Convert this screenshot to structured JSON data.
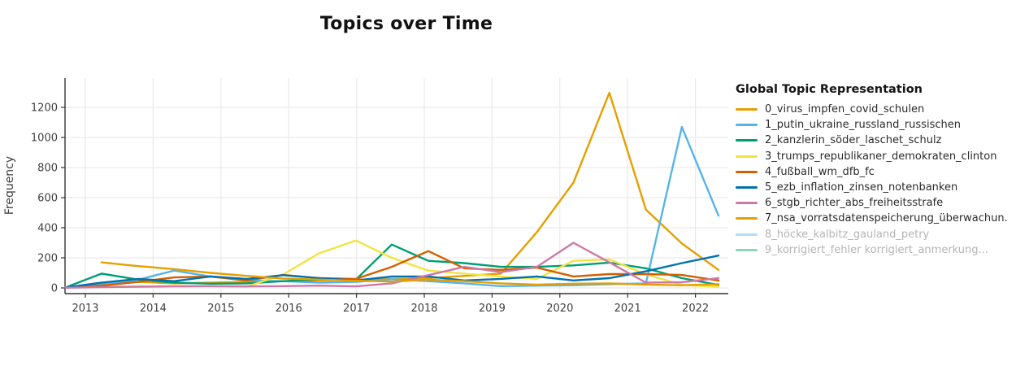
{
  "title": "Topics over Time",
  "legend": {
    "title": "Global Topic Representation"
  },
  "chart_data": {
    "type": "line",
    "title": "Topics over Time",
    "xlabel": "",
    "ylabel": "Frequency",
    "grid": true,
    "legend_position": "right",
    "legend_title": "Global Topic Representation",
    "xlim": [
      2012.7,
      2022.48
    ],
    "ylim": [
      -38,
      1395
    ],
    "x_ticks": [
      2013,
      2014,
      2015,
      2016,
      2017,
      2018,
      2019,
      2020,
      2021,
      2022
    ],
    "y_ticks": [
      0,
      200,
      400,
      600,
      800,
      1000,
      1200
    ],
    "x": [
      2012.71,
      2013.24,
      2013.78,
      2014.31,
      2014.85,
      2015.38,
      2015.92,
      2016.45,
      2016.99,
      2017.52,
      2018.06,
      2018.59,
      2019.13,
      2019.66,
      2020.2,
      2020.73,
      2021.27,
      2021.8,
      2022.34
    ],
    "series": [
      {
        "name": "0_virus_impfen_covid_schulen",
        "color": "#E69F00",
        "hidden": false,
        "values": [
          5,
          25,
          40,
          30,
          35,
          40,
          45,
          50,
          55,
          60,
          65,
          80,
          95,
          370,
          700,
          1297,
          520,
          295,
          120
        ]
      },
      {
        "name": "1_putin_ukraine_russland_russischen",
        "color": "#56B4E9",
        "hidden": false,
        "values": [
          2,
          20,
          55,
          115,
          75,
          50,
          45,
          35,
          40,
          58,
          45,
          30,
          12,
          15,
          18,
          25,
          30,
          1070,
          480
        ]
      },
      {
        "name": "2_kanzlerin_söder_laschet_schulz",
        "color": "#009E73",
        "hidden": false,
        "values": [
          3,
          95,
          55,
          35,
          28,
          30,
          45,
          55,
          55,
          288,
          180,
          165,
          140,
          140,
          150,
          168,
          130,
          65,
          20
        ]
      },
      {
        "name": "3_trumps_republikaner_demokraten_clinton",
        "color": "#F0E442",
        "hidden": false,
        "values": [
          5,
          8,
          10,
          12,
          10,
          8,
          90,
          230,
          315,
          200,
          115,
          95,
          75,
          60,
          180,
          190,
          90,
          20,
          8
        ]
      },
      {
        "name": "4_fußball_wm_dfb_fc",
        "color": "#D55E00",
        "hidden": false,
        "values": [
          2,
          15,
          40,
          70,
          76,
          50,
          86,
          65,
          60,
          140,
          245,
          130,
          120,
          135,
          76,
          92,
          92,
          86,
          49
        ]
      },
      {
        "name": "5_ezb_inflation_zinsen_notenbanken",
        "color": "#0072B2",
        "hidden": false,
        "values": [
          3,
          35,
          60,
          45,
          76,
          60,
          85,
          65,
          50,
          76,
          76,
          50,
          60,
          76,
          50,
          65,
          110,
          165,
          215
        ]
      },
      {
        "name": "6_stgb_richter_abs_freiheitsstrafe",
        "color": "#CC79A7",
        "hidden": false,
        "values": [
          1,
          5,
          8,
          10,
          12,
          10,
          12,
          15,
          10,
          30,
          85,
          140,
          105,
          140,
          300,
          170,
          35,
          38,
          65
        ]
      },
      {
        "name": "7_nsa_vorratsdatenspeicherung_überwachun.",
        "color": "#E69F00",
        "hidden": false,
        "values": [
          null,
          170,
          145,
          125,
          100,
          80,
          62,
          55,
          48,
          42,
          55,
          45,
          30,
          22,
          28,
          30,
          22,
          18,
          25
        ]
      },
      {
        "name": "8_höcke_kalbitz_gauland_petry",
        "color": "#56B4E9",
        "hidden": true,
        "values": []
      },
      {
        "name": "9_korrigiert_fehler korrigiert_anmerkung...",
        "color": "#009E73",
        "hidden": true,
        "values": []
      }
    ]
  }
}
